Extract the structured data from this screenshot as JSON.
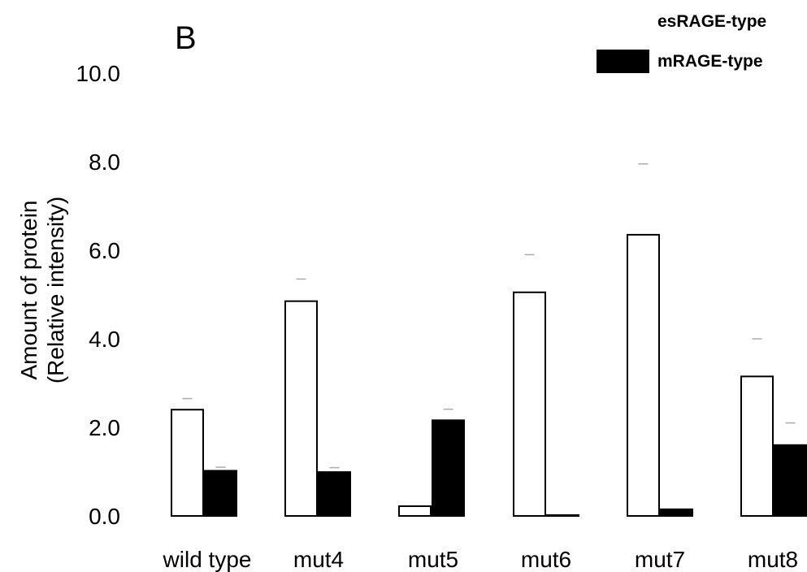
{
  "panel_letter": "B",
  "chart_data": {
    "type": "bar",
    "categories": [
      "wild type",
      "mut4",
      "mut5",
      "mut6",
      "mut7",
      "mut8"
    ],
    "series": [
      {
        "name": "esRAGE-type",
        "fill": "#ffffff",
        "stroke": "#000000",
        "values": [
          2.4,
          4.85,
          0.22,
          5.05,
          6.35,
          3.15
        ],
        "errors": [
          0.25,
          0.5,
          0.0,
          0.85,
          1.6,
          0.85
        ]
      },
      {
        "name": "mRAGE-type",
        "fill": "#000000",
        "stroke": "#000000",
        "values": [
          1.02,
          0.99,
          2.16,
          0.0,
          0.15,
          1.6
        ],
        "errors": [
          0.08,
          0.1,
          0.25,
          0.0,
          0.0,
          0.5
        ]
      }
    ],
    "y_ticks": [
      "0.0",
      "2.0",
      "4.0",
      "6.0",
      "8.0",
      "10.0"
    ],
    "ylim": [
      0,
      10
    ],
    "ylabel_lines": [
      "Amount of protein",
      "(Relative intensity)"
    ],
    "grid": false,
    "legend_position": "top-right"
  }
}
